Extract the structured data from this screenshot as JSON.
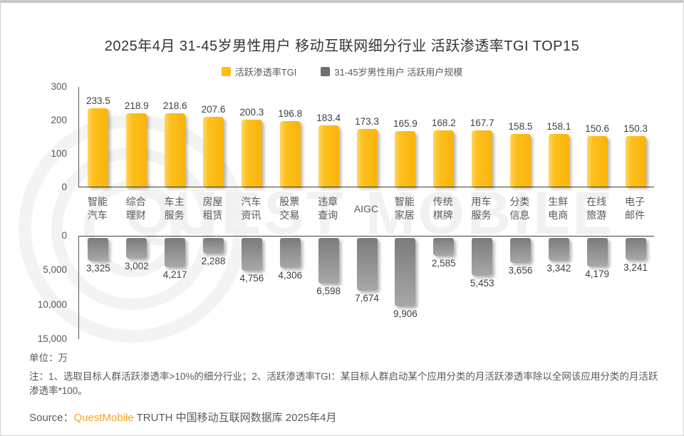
{
  "page": {
    "title": "2025年4月 31-45岁男性用户 移动互联网细分行业 活跃渗透率TGI TOP15",
    "unit_label": "单位：万",
    "note": "注：1、选取目标人群活跃渗透率>10%的细分行业；2、活跃渗透率TGI：某目标人群启动某个应用分类的月活跃渗透率除以全网该应用分类的月活跃渗透率*100。",
    "source_prefix": "Source：",
    "source_brand": "QuestMobile",
    "source_suffix": " TRUTH 中国移动互联网数据库 2025年4月",
    "watermark_text": "QUEST MOBILE"
  },
  "legend": [
    {
      "label": "活跃渗透率TGI",
      "color": "#fdbd13"
    },
    {
      "label": "31-45岁男性用户 活跃用户规模",
      "color": "#6f6f6f"
    }
  ],
  "colors": {
    "tgi_bar": "#fdbd13",
    "scale_bar": "#8c8c8c",
    "brand_orange": "#f9a21e"
  },
  "chart_data": {
    "type": "bar",
    "title": "2025年4月 31-45岁男性用户 移动互联网细分行业 活跃渗透率TGI TOP15",
    "unit": "万",
    "legend_position": "top center",
    "grid": false,
    "categories": [
      "智能\n汽车",
      "综合\n理财",
      "车主\n服务",
      "房屋\n租赁",
      "汽车\n资讯",
      "股票\n交易",
      "违章\n查询",
      "AIGC",
      "智能\n家居",
      "传统\n棋牌",
      "用车\n服务",
      "分类\n信息",
      "生鲜\n电商",
      "在线\n旅游",
      "电子\n邮件"
    ],
    "series": [
      {
        "name": "活跃渗透率TGI",
        "direction": "up",
        "values": [
          233.5,
          218.9,
          218.6,
          207.6,
          200.3,
          196.8,
          183.4,
          173.3,
          165.9,
          168.2,
          167.7,
          158.5,
          158.1,
          150.6,
          150.3
        ],
        "labels": [
          "233.5",
          "218.9",
          "218.6",
          "207.6",
          "200.3",
          "196.8",
          "183.4",
          "173.3",
          "165.9",
          "168.2",
          "167.7",
          "158.5",
          "158.1",
          "150.6",
          "150.3"
        ],
        "axis": {
          "min": 0,
          "max": 300,
          "ticks": [
            300,
            200,
            100,
            0
          ]
        }
      },
      {
        "name": "31-45岁男性用户 活跃用户规模",
        "direction": "down",
        "values": [
          3325,
          3002,
          4217,
          2288,
          4756,
          4306,
          6598,
          7674,
          9906,
          2585,
          5453,
          3656,
          3342,
          4179,
          3241
        ],
        "labels": [
          "3,325",
          "3,002",
          "4,217",
          "2,288",
          "4,756",
          "4,306",
          "6,598",
          "7,674",
          "9,906",
          "2,585",
          "5,453",
          "3,656",
          "3,342",
          "4,179",
          "3,241"
        ],
        "axis": {
          "min": 0,
          "max": 15000,
          "ticks": [
            0,
            5000,
            10000,
            15000
          ],
          "tick_labels": [
            "0",
            "5,000",
            "10,000",
            "15,000"
          ]
        }
      }
    ]
  }
}
